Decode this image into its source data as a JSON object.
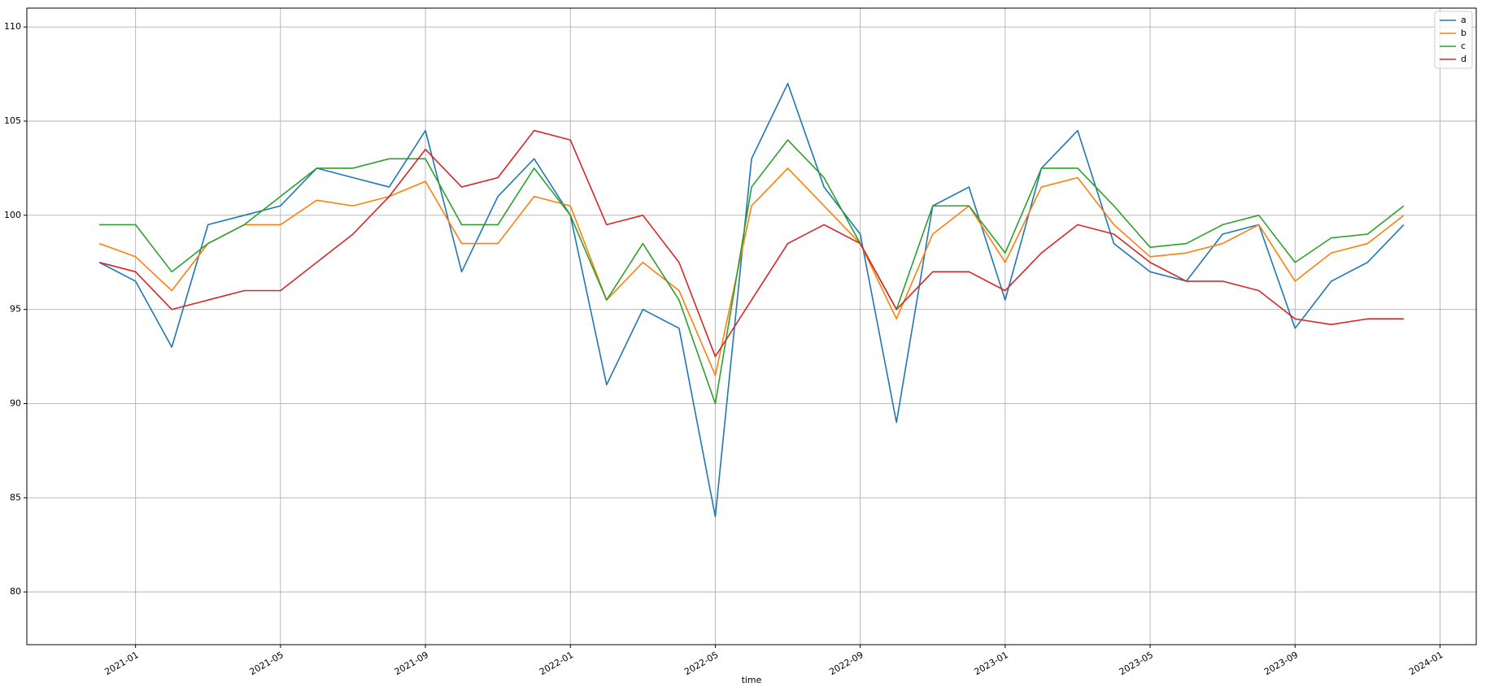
{
  "chart_data": {
    "type": "line",
    "x_label": "time",
    "x": [
      "2020-12",
      "2021-01",
      "2021-02",
      "2021-03",
      "2021-04",
      "2021-05",
      "2021-06",
      "2021-07",
      "2021-08",
      "2021-09",
      "2021-10",
      "2021-11",
      "2021-12",
      "2022-01",
      "2022-02",
      "2022-03",
      "2022-04",
      "2022-05",
      "2022-06",
      "2022-07",
      "2022-08",
      "2022-09",
      "2022-10",
      "2022-11",
      "2022-12",
      "2023-01",
      "2023-02",
      "2023-03",
      "2023-04",
      "2023-05",
      "2023-06",
      "2023-07",
      "2023-08",
      "2023-09",
      "2023-10",
      "2023-11",
      "2023-12"
    ],
    "series": [
      {
        "name": "a",
        "color": "#1f77b4",
        "values": [
          97.5,
          96.5,
          93,
          99.5,
          100,
          100.5,
          102.5,
          102,
          101.5,
          104.5,
          97,
          101,
          103,
          100,
          91,
          95,
          94,
          84,
          103,
          107,
          101.5,
          99,
          89,
          100.5,
          101.5,
          95.5,
          102.5,
          104.5,
          98.5,
          97,
          96.5,
          99,
          99.5,
          94,
          96.5,
          97.5,
          99.5
        ]
      },
      {
        "name": "b",
        "color": "#ff7f0e",
        "values": [
          98.5,
          97.8,
          96,
          98.5,
          99.5,
          99.5,
          100.8,
          100.5,
          101,
          101.8,
          98.5,
          98.5,
          101,
          100.5,
          95.5,
          97.5,
          96,
          91.5,
          100.5,
          102.5,
          100.5,
          98.5,
          94.5,
          99,
          100.5,
          97.5,
          101.5,
          102,
          99.5,
          97.8,
          98,
          98.5,
          99.5,
          96.5,
          98,
          98.5,
          100
        ]
      },
      {
        "name": "c",
        "color": "#2ca02c",
        "values": [
          99.5,
          99.5,
          97,
          98.5,
          99.5,
          101,
          102.5,
          102.5,
          103,
          103,
          99.5,
          99.5,
          102.5,
          100,
          95.5,
          98.5,
          95.5,
          90,
          101.5,
          104,
          102,
          98.5,
          95,
          100.5,
          100.5,
          98,
          102.5,
          102.5,
          100.5,
          98.3,
          98.5,
          99.5,
          100,
          97.5,
          98.8,
          99,
          100.5
        ]
      },
      {
        "name": "d",
        "color": "#d62728",
        "values": [
          97.5,
          97,
          95,
          95.5,
          96,
          96,
          97.5,
          99,
          101,
          103.5,
          101.5,
          102,
          104.5,
          104,
          99.5,
          100,
          97.5,
          92.5,
          95.5,
          98.5,
          99.5,
          98.5,
          95,
          97,
          97,
          96,
          98,
          99.5,
          99,
          97.5,
          96.5,
          96.5,
          96,
          94.5,
          94.2,
          94.5,
          94.5
        ]
      }
    ],
    "xlim": [
      "2020-10",
      "2024-02"
    ],
    "xticks": [
      "2021-01",
      "2021-05",
      "2021-09",
      "2022-01",
      "2022-05",
      "2022-09",
      "2023-01",
      "2023-05",
      "2023-09",
      "2024-01"
    ],
    "ylim": [
      77.2,
      111.0
    ],
    "yticks": [
      80,
      85,
      90,
      95,
      100,
      105,
      110
    ],
    "grid": true,
    "legend": "upper right"
  }
}
